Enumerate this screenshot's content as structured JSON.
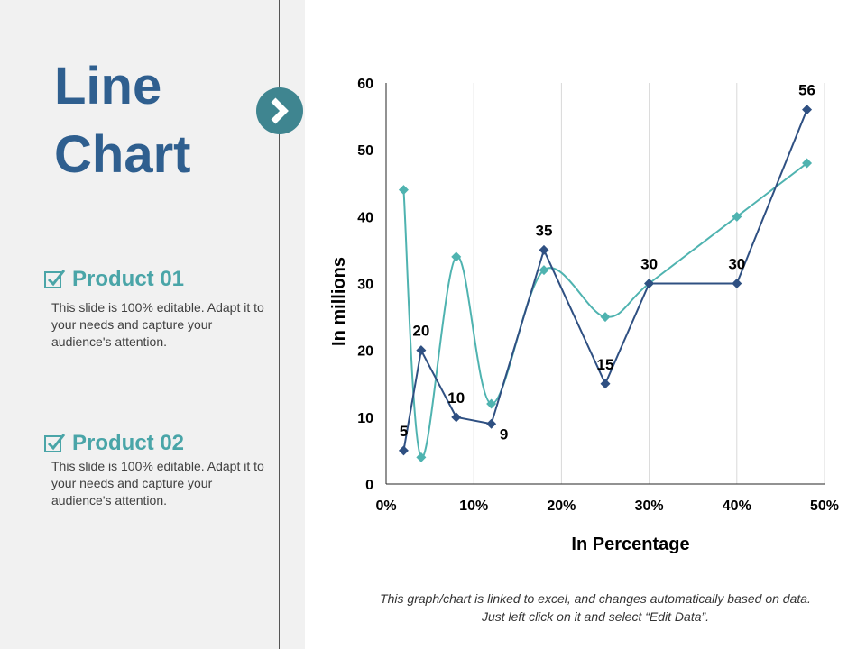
{
  "slide": {
    "title_line1": "Line",
    "title_line2": "Chart",
    "footnote_line1": "This graph/chart is linked to excel, and changes automatically based on data.",
    "footnote_line2": "Just left click on it and select “Edit Data”."
  },
  "products": [
    {
      "name": "Product 01",
      "description": "This slide is 100% editable. Adapt it to your needs and capture your audience's attention."
    },
    {
      "name": "Product 02",
      "description": "This slide is 100% editable. Adapt it to your needs and capture your audience's attention."
    }
  ],
  "icons": {
    "arrow": "chevron-right-icon",
    "check": "checkbox-checked-icon"
  },
  "colors": {
    "title": "#2f5f8f",
    "accent_teal": "#3f8590",
    "product_text": "#4aa5a8",
    "series_dark": "#2f5082",
    "series_light": "#4fb3b0",
    "left_panel": "#f1f1f1"
  },
  "chart_data": {
    "type": "line",
    "xlabel": "In Percentage",
    "ylabel": "In millions",
    "xlim": [
      0,
      50
    ],
    "ylim": [
      0,
      60
    ],
    "x_ticks": [
      0,
      10,
      20,
      30,
      40,
      50
    ],
    "x_tick_labels": [
      "0%",
      "10%",
      "20%",
      "30%",
      "40%",
      "50%"
    ],
    "y_ticks": [
      0,
      10,
      20,
      30,
      40,
      50,
      60
    ],
    "y_tick_labels": [
      "0",
      "10",
      "20",
      "30",
      "40",
      "50",
      "60"
    ],
    "series": [
      {
        "name": "Product 01",
        "smooth": false,
        "points": [
          [
            2,
            5
          ],
          [
            4,
            20
          ],
          [
            8,
            10
          ],
          [
            12,
            9
          ],
          [
            18,
            35
          ],
          [
            25,
            15
          ],
          [
            30,
            30
          ],
          [
            40,
            30
          ],
          [
            48,
            56
          ]
        ],
        "labels": [
          "5",
          "20",
          "10",
          "9",
          "35",
          "15",
          "30",
          "30",
          "56"
        ]
      },
      {
        "name": "Product 02",
        "smooth": true,
        "points": [
          [
            2,
            44
          ],
          [
            4,
            4
          ],
          [
            8,
            34
          ],
          [
            12,
            12
          ],
          [
            18,
            32
          ],
          [
            25,
            25
          ],
          [
            30,
            30
          ],
          [
            40,
            40
          ],
          [
            48,
            48
          ]
        ]
      }
    ]
  }
}
